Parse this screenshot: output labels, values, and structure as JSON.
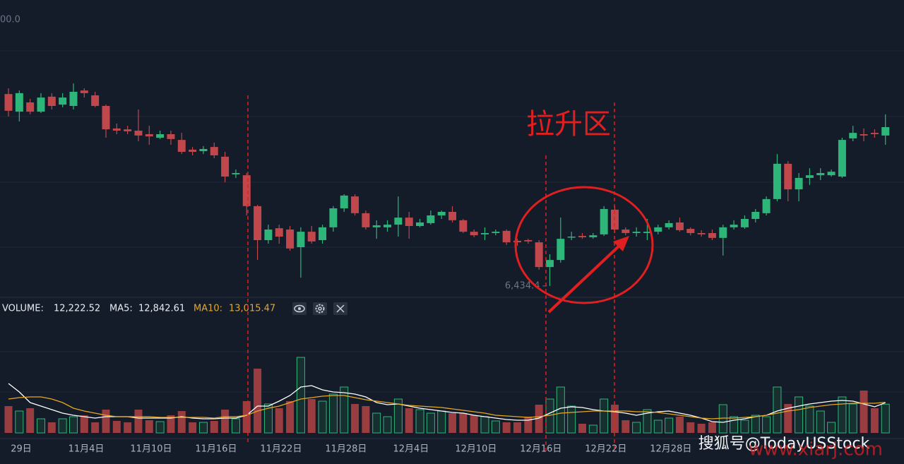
{
  "chart_data": [
    {
      "type": "candlestick",
      "top_label": "00.0",
      "highlight_label": "拉升区",
      "low_label": {
        "value": 6434.4,
        "label": "6,434.4"
      },
      "up_color": "#2eb67a",
      "down_color": "#c0474b",
      "ylim": [
        6386,
        7730
      ],
      "categories": [
        "29日",
        null,
        null,
        null,
        null,
        null,
        "11月4日",
        null,
        null,
        null,
        null,
        null,
        "11月10日",
        null,
        null,
        null,
        null,
        null,
        "11月16日",
        null,
        null,
        null,
        null,
        null,
        "11月22日",
        null,
        null,
        null,
        null,
        null,
        "11月28日",
        null,
        null,
        null,
        null,
        null,
        "12月4日",
        null,
        null,
        null,
        null,
        null,
        "12月10日",
        null,
        null,
        null,
        null,
        null,
        "12月16日",
        null,
        null,
        null,
        null,
        null,
        "12月22日",
        null,
        null,
        null,
        null,
        null,
        "12月28日",
        null,
        null,
        null,
        null,
        null,
        null,
        null,
        null,
        null,
        null,
        null,
        null,
        null,
        null,
        null,
        null,
        null,
        null,
        null,
        null,
        null
      ],
      "open": [
        7304,
        7224,
        7266,
        7224,
        7292,
        7256,
        7250,
        7320,
        7298,
        7250,
        7148,
        7144,
        7138,
        7122,
        7106,
        7122,
        7096,
        7052,
        7045,
        7064,
        7020,
        6940,
        6936,
        6796,
        6642,
        6696,
        6690,
        6610,
        6680,
        6642,
        6700,
        6786,
        6840,
        6764,
        6700,
        6700,
        6712,
        6744,
        6706,
        6719,
        6754,
        6770,
        6732,
        6680,
        6668,
        6674,
        6684,
        6639,
        6642,
        6632,
        6520,
        6552,
        6655,
        6661,
        6655,
        6668,
        6780,
        6690,
        6674,
        6674,
        6680,
        6700,
        6722,
        6693,
        6674,
        6674,
        6652,
        6700,
        6700,
        6738,
        6764,
        6828,
        6988,
        6872,
        6924,
        6936,
        6936,
        6930,
        7103,
        7122,
        7128,
        7116
      ],
      "high": [
        7330,
        7320,
        7282,
        7308,
        7308,
        7308,
        7352,
        7330,
        7314,
        7256,
        7170,
        7160,
        7234,
        7160,
        7138,
        7138,
        7128,
        7064,
        7068,
        7084,
        7042,
        6962,
        6946,
        6802,
        6712,
        6712,
        6706,
        6700,
        6706,
        6712,
        6796,
        6850,
        6850,
        6776,
        6732,
        6732,
        6840,
        6770,
        6738,
        6776,
        6776,
        6796,
        6738,
        6690,
        6700,
        6690,
        6690,
        6648,
        6648,
        6642,
        6578,
        6744,
        6680,
        6674,
        6674,
        6796,
        6796,
        6700,
        6700,
        6738,
        6712,
        6732,
        6744,
        6700,
        6687,
        6690,
        6712,
        6732,
        6754,
        6783,
        6840,
        7032,
        7000,
        6946,
        6968,
        6968,
        6962,
        7106,
        7160,
        7148,
        7144,
        7212
      ],
      "low": [
        7202,
        7180,
        7212,
        7218,
        7234,
        7244,
        7234,
        7288,
        7244,
        7106,
        7122,
        7122,
        7090,
        7074,
        7100,
        7074,
        7032,
        7026,
        7032,
        7013,
        6904,
        6924,
        6754,
        6552,
        6626,
        6626,
        6594,
        6472,
        6626,
        6626,
        6680,
        6770,
        6754,
        6690,
        6648,
        6680,
        6658,
        6648,
        6700,
        6712,
        6738,
        6722,
        6674,
        6655,
        6642,
        6664,
        6620,
        6616,
        6626,
        6508,
        6434.4,
        6540,
        6642,
        6648,
        6648,
        6661,
        6674,
        6664,
        6658,
        6642,
        6668,
        6690,
        6680,
        6664,
        6658,
        6642,
        6572,
        6690,
        6693,
        6722,
        6754,
        6818,
        6818,
        6818,
        6892,
        6914,
        6930,
        6924,
        7090,
        7090,
        7106,
        7074
      ],
      "close": [
        7228,
        7308,
        7224,
        7288,
        7250,
        7288,
        7314,
        7308,
        7250,
        7144,
        7138,
        7135,
        7116,
        7112,
        7122,
        7100,
        7042,
        7042,
        7055,
        7026,
        6930,
        6946,
        6796,
        6642,
        6690,
        6658,
        6604,
        6680,
        6636,
        6700,
        6786,
        6844,
        6764,
        6700,
        6709,
        6712,
        6744,
        6706,
        6722,
        6754,
        6770,
        6732,
        6680,
        6664,
        6674,
        6680,
        6632,
        6632,
        6636,
        6520,
        6552,
        6648,
        6658,
        6655,
        6664,
        6783,
        6690,
        6674,
        6680,
        6680,
        6700,
        6719,
        6687,
        6674,
        6668,
        6652,
        6700,
        6712,
        6738,
        6770,
        6828,
        6988,
        6872,
        6924,
        6936,
        6946,
        6952,
        7096,
        7128,
        7116,
        7122,
        7154
      ]
    },
    {
      "type": "volume",
      "ylim": [
        0,
        48900
      ],
      "series": [
        {
          "name": "VOLUME:",
          "last_label": "12,222.52",
          "color": "#e8ecf2",
          "values": [
            11400,
            9300,
            10500,
            6000,
            4500,
            6000,
            6900,
            7500,
            4500,
            9900,
            5100,
            4500,
            9900,
            5400,
            4800,
            7500,
            9300,
            4500,
            4500,
            5100,
            9900,
            6000,
            13500,
            27300,
            12300,
            10500,
            13500,
            32100,
            14400,
            13500,
            16500,
            19500,
            12300,
            11400,
            8400,
            6900,
            14400,
            10500,
            9900,
            8400,
            9300,
            8400,
            8400,
            7500,
            6900,
            5100,
            4500,
            4500,
            6900,
            12000,
            14400,
            19500,
            11400,
            3900,
            3300,
            14400,
            12000,
            5400,
            4500,
            9900,
            5400,
            6300,
            6900,
            4500,
            3900,
            4500,
            12000,
            6900,
            5400,
            7500,
            6900,
            19500,
            12300,
            15300,
            11400,
            9300,
            4500,
            15300,
            12300,
            18000,
            10500,
            12222.52
          ]
        },
        {
          "name": "MA5:",
          "last_label": "12,842.61",
          "color": "#ffffff",
          "values": [
            21000,
            17400,
            12900,
            11400,
            9900,
            8400,
            7500,
            6900,
            6300,
            6900,
            6900,
            6900,
            6300,
            6300,
            6300,
            6300,
            6900,
            6300,
            6000,
            6000,
            6300,
            6300,
            7500,
            11400,
            11400,
            13500,
            15900,
            19500,
            20100,
            18300,
            17400,
            17100,
            16500,
            15300,
            12900,
            12000,
            12300,
            11400,
            10500,
            9900,
            9300,
            8700,
            8400,
            7500,
            6900,
            6300,
            5700,
            5400,
            5400,
            6300,
            8400,
            10500,
            11100,
            10800,
            9900,
            9300,
            9000,
            8400,
            7500,
            8400,
            9000,
            9300,
            8400,
            7500,
            6300,
            4800,
            4500,
            5400,
            6000,
            6900,
            7500,
            9300,
            10500,
            11400,
            12300,
            12900,
            13500,
            13800,
            13500,
            12300,
            11100,
            12842.61
          ]
        },
        {
          "name": "MA10:",
          "last_label": "13,015.47",
          "color": "#e5a823",
          "values": [
            14400,
            15000,
            15300,
            15300,
            14400,
            12900,
            10500,
            9300,
            8400,
            7500,
            6900,
            6900,
            6900,
            6900,
            6600,
            6600,
            6600,
            6600,
            6600,
            6300,
            6900,
            6900,
            7500,
            9300,
            10500,
            11400,
            12900,
            14400,
            15000,
            15600,
            15900,
            15900,
            15000,
            14100,
            13500,
            12900,
            12300,
            11700,
            11400,
            11100,
            10800,
            10200,
            9600,
            9000,
            8400,
            7500,
            7200,
            6900,
            6600,
            6900,
            7500,
            8400,
            8700,
            9000,
            9300,
            9300,
            9300,
            9300,
            9000,
            9000,
            8700,
            8100,
            7500,
            6900,
            6300,
            6000,
            6300,
            6300,
            6600,
            6900,
            7500,
            8400,
            9300,
            9900,
            10800,
            11400,
            12000,
            12300,
            12600,
            12600,
            12600,
            13015.47
          ]
        }
      ]
    }
  ],
  "watermarks": [
    "搜狐号@TodayUSStock",
    "www.xiarj.com"
  ]
}
